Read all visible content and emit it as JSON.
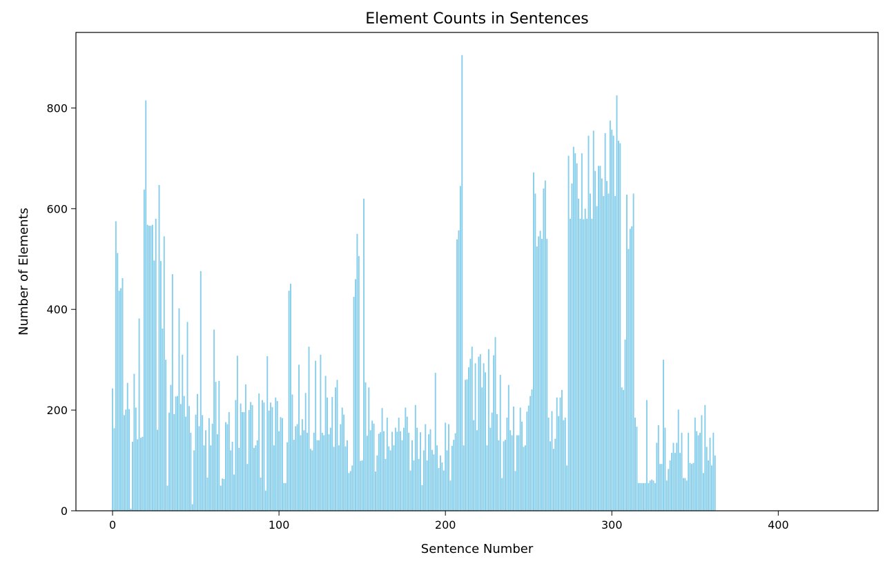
{
  "chart_data": {
    "type": "bar",
    "title": "Element Counts in Sentences",
    "xlabel": "Sentence Number",
    "ylabel": "Number of Elements",
    "xlim": [
      -22,
      460
    ],
    "ylim": [
      0,
      950
    ],
    "x_ticks": [
      0,
      100,
      200,
      300,
      400
    ],
    "y_ticks": [
      0,
      200,
      400,
      600,
      800
    ],
    "grid": false,
    "legend": "none",
    "bar_color": "#87CEEB",
    "x_start": 0,
    "values": [
      243,
      164,
      575,
      512,
      437,
      442,
      462,
      190,
      201,
      254,
      202,
      4,
      137,
      272,
      205,
      142,
      382,
      145,
      147,
      638,
      815,
      568,
      566,
      566,
      568,
      497,
      580,
      161,
      647,
      496,
      362,
      545,
      300,
      50,
      195,
      250,
      470,
      192,
      227,
      228,
      402,
      212,
      310,
      228,
      187,
      375,
      208,
      155,
      13,
      120,
      191,
      232,
      168,
      476,
      190,
      130,
      160,
      66,
      184,
      130,
      173,
      360,
      256,
      152,
      258,
      50,
      64,
      63,
      176,
      172,
      196,
      120,
      137,
      72,
      220,
      308,
      125,
      213,
      196,
      196,
      251,
      93,
      200,
      216,
      210,
      125,
      130,
      140,
      233,
      66,
      220,
      215,
      40,
      307,
      199,
      215,
      206,
      130,
      225,
      218,
      158,
      186,
      184,
      55,
      55,
      136,
      437,
      451,
      231,
      141,
      168,
      172,
      290,
      150,
      182,
      160,
      234,
      155,
      326,
      123,
      120,
      155,
      298,
      140,
      140,
      310,
      155,
      150,
      268,
      225,
      152,
      165,
      226,
      127,
      245,
      260,
      130,
      172,
      205,
      191,
      128,
      140,
      75,
      79,
      90,
      425,
      460,
      550,
      506,
      99,
      100,
      620,
      255,
      149,
      245,
      160,
      179,
      173,
      78,
      110,
      153,
      156,
      204,
      158,
      103,
      185,
      128,
      120,
      157,
      130,
      165,
      157,
      185,
      158,
      140,
      165,
      205,
      187,
      155,
      80,
      140,
      100,
      210,
      165,
      103,
      156,
      51,
      120,
      172,
      100,
      152,
      162,
      121,
      112,
      274,
      130,
      85,
      110,
      96,
      80,
      175,
      120,
      172,
      60,
      129,
      141,
      154,
      539,
      557,
      645,
      905,
      130,
      260,
      261,
      285,
      302,
      326,
      180,
      293,
      160,
      306,
      311,
      245,
      293,
      275,
      130,
      321,
      165,
      195,
      309,
      345,
      192,
      140,
      270,
      65,
      138,
      141,
      185,
      250,
      160,
      150,
      207,
      79,
      150,
      150,
      205,
      177,
      127,
      130,
      197,
      209,
      228,
      241,
      672,
      630,
      525,
      545,
      556,
      540,
      640,
      656,
      540,
      185,
      138,
      198,
      123,
      143,
      225,
      188,
      225,
      240,
      180,
      185,
      90,
      705,
      580,
      650,
      723,
      710,
      690,
      620,
      580,
      710,
      579,
      600,
      580,
      745,
      630,
      580,
      755,
      675,
      605,
      685,
      685,
      660,
      625,
      750,
      655,
      630,
      775,
      757,
      745,
      625,
      825,
      735,
      730,
      245,
      240,
      340,
      628,
      520,
      560,
      565,
      630,
      185,
      167,
      55,
      55,
      55,
      55,
      55,
      220,
      55,
      60,
      62,
      60,
      55,
      135,
      170,
      93,
      93,
      300,
      165,
      60,
      83,
      100,
      115,
      135,
      115,
      135,
      201,
      115,
      155,
      65,
      65,
      60,
      155,
      95,
      93,
      95,
      185,
      158,
      150,
      155,
      190,
      75,
      210,
      127,
      100,
      145,
      90,
      155,
      110
    ]
  }
}
